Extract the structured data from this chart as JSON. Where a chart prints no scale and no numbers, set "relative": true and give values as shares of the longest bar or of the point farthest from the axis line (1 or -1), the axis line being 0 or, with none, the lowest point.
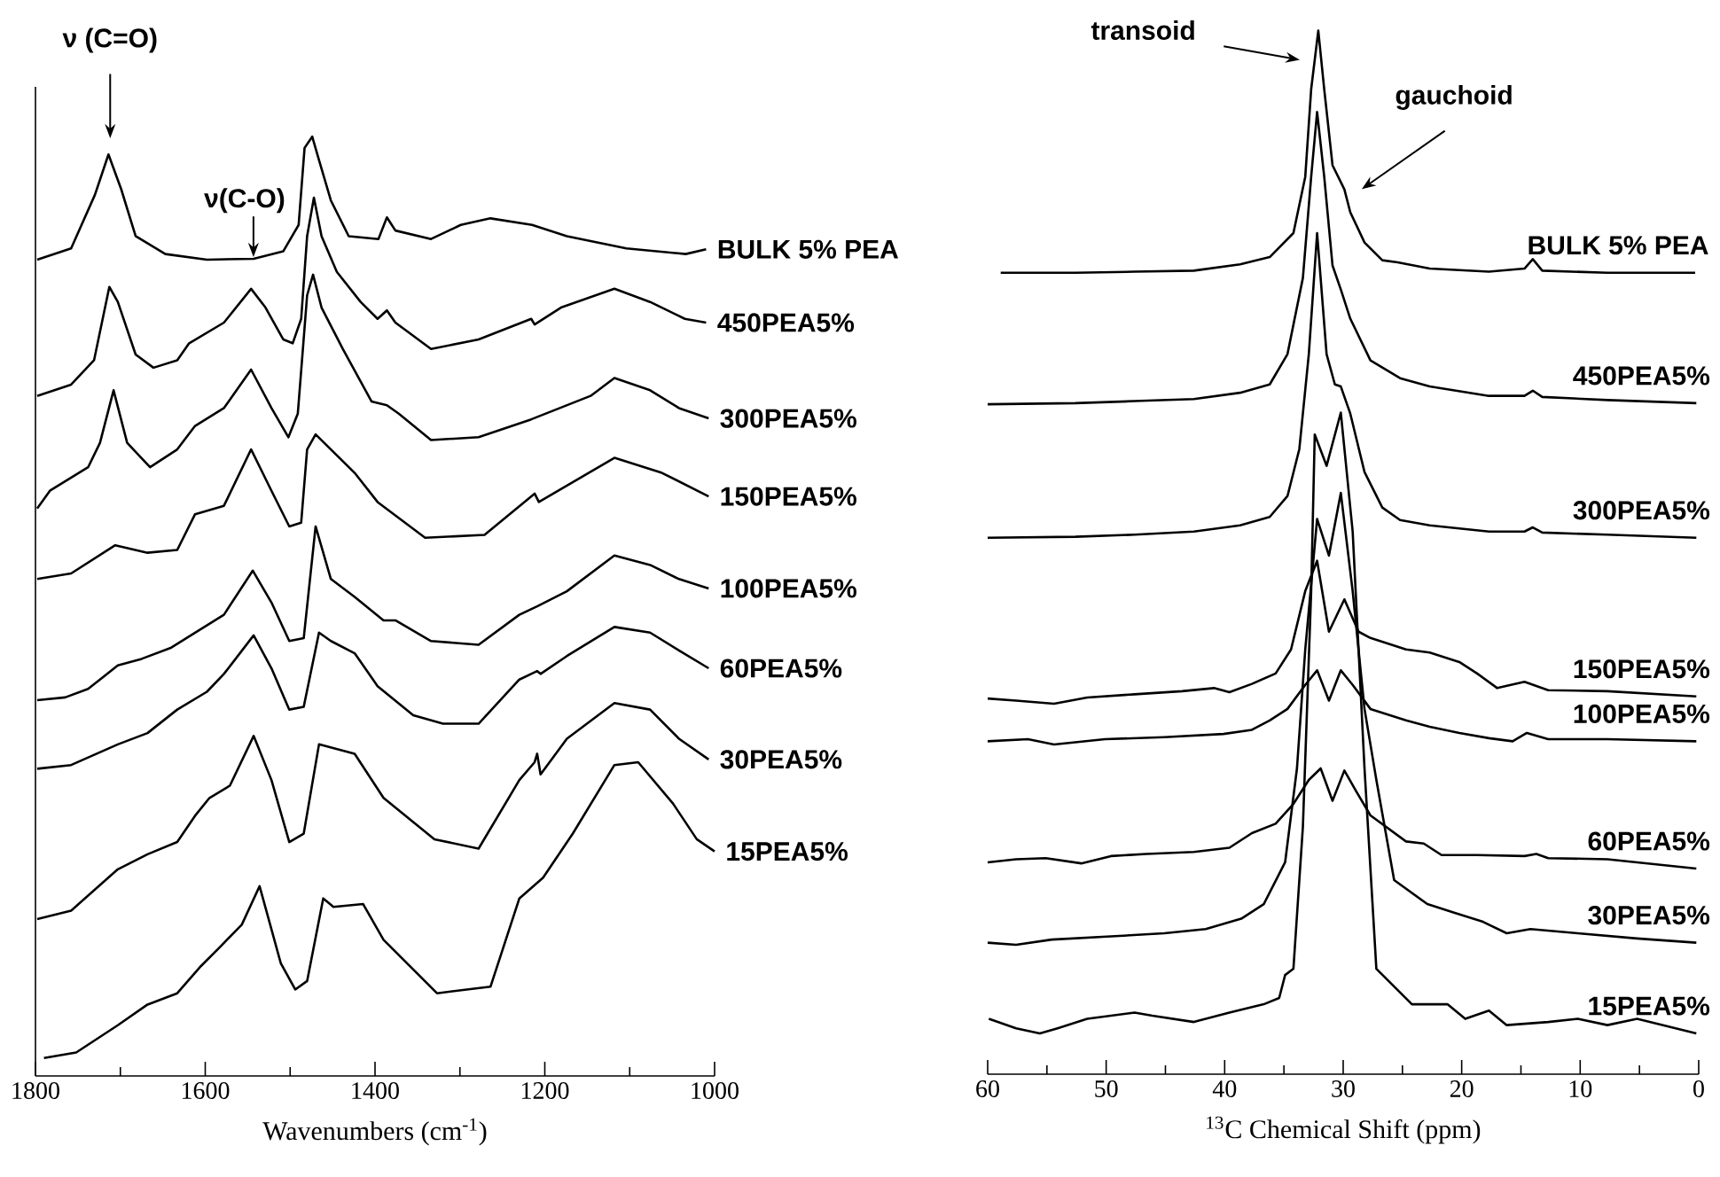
{
  "chart_data": [
    {
      "type": "line",
      "relative": true,
      "xlabel": "Wavenumbers (cm$^{-1}$)",
      "xlim": [
        1800,
        1000
      ],
      "xticks": [
        1800,
        1600,
        1400,
        1200,
        1000
      ],
      "tick_labels": "x",
      "annotations": [
        "ν (C=O)",
        "ν(C-O)"
      ],
      "series": [
        {
          "name": "BULK 5% PEA",
          "color": "#000000",
          "x": [
            1798,
            1758,
            1730,
            1714,
            1699,
            1682,
            1647,
            1598,
            1543,
            1508,
            1490,
            1483,
            1474,
            1466,
            1452,
            1431,
            1396,
            1386,
            1376,
            1334,
            1299,
            1264,
            1215,
            1174,
            1104,
            1034,
            1010
          ],
          "values": [
            0.869,
            0.881,
            0.938,
            0.981,
            0.944,
            0.894,
            0.875,
            0.869,
            0.87,
            0.878,
            0.906,
            0.988,
            1.0,
            0.975,
            0.932,
            0.894,
            0.891,
            0.914,
            0.9,
            0.891,
            0.906,
            0.913,
            0.906,
            0.894,
            0.881,
            0.875,
            0.88
          ]
        },
        {
          "name": "450PEA5%",
          "color": "#000000",
          "x": [
            1798,
            1758,
            1731,
            1713,
            1703,
            1682,
            1661,
            1633,
            1619,
            1578,
            1546,
            1529,
            1508,
            1497,
            1487,
            1480,
            1472,
            1463,
            1445,
            1417,
            1397,
            1386,
            1376,
            1334,
            1278,
            1216,
            1212,
            1181,
            1118,
            1076,
            1035,
            1010
          ],
          "values": [
            0.724,
            0.736,
            0.762,
            0.84,
            0.824,
            0.768,
            0.754,
            0.762,
            0.78,
            0.802,
            0.838,
            0.818,
            0.784,
            0.78,
            0.806,
            0.894,
            0.935,
            0.894,
            0.856,
            0.824,
            0.806,
            0.815,
            0.802,
            0.774,
            0.784,
            0.806,
            0.8,
            0.818,
            0.838,
            0.824,
            0.806,
            0.802
          ]
        },
        {
          "name": "300PEA5%",
          "color": "#000000",
          "x": [
            1798,
            1783,
            1738,
            1724,
            1708,
            1692,
            1665,
            1633,
            1612,
            1578,
            1546,
            1522,
            1502,
            1491,
            1480,
            1473,
            1463,
            1438,
            1404,
            1386,
            1372,
            1334,
            1278,
            1216,
            1146,
            1118,
            1076,
            1042,
            1007
          ],
          "values": [
            0.604,
            0.623,
            0.648,
            0.674,
            0.73,
            0.674,
            0.648,
            0.667,
            0.692,
            0.711,
            0.752,
            0.711,
            0.68,
            0.705,
            0.831,
            0.853,
            0.818,
            0.774,
            0.718,
            0.714,
            0.705,
            0.677,
            0.68,
            0.699,
            0.724,
            0.743,
            0.73,
            0.711,
            0.7
          ]
        },
        {
          "name": "150PEA5%",
          "color": "#000000",
          "x": [
            1798,
            1758,
            1706,
            1668,
            1633,
            1612,
            1578,
            1546,
            1522,
            1501,
            1487,
            1480,
            1470,
            1424,
            1397,
            1341,
            1271,
            1212,
            1207,
            1118,
            1062,
            1007
          ],
          "values": [
            0.529,
            0.535,
            0.565,
            0.557,
            0.56,
            0.598,
            0.607,
            0.667,
            0.623,
            0.585,
            0.589,
            0.667,
            0.683,
            0.642,
            0.611,
            0.573,
            0.576,
            0.62,
            0.611,
            0.658,
            0.642,
            0.617
          ]
        },
        {
          "name": "100PEA5%",
          "color": "#000000",
          "x": [
            1798,
            1765,
            1738,
            1703,
            1675,
            1640,
            1578,
            1544,
            1522,
            1501,
            1484,
            1470,
            1452,
            1424,
            1390,
            1376,
            1334,
            1278,
            1230,
            1209,
            1174,
            1118,
            1076,
            1042,
            1007
          ],
          "values": [
            0.4,
            0.403,
            0.412,
            0.437,
            0.444,
            0.456,
            0.491,
            0.538,
            0.504,
            0.463,
            0.466,
            0.585,
            0.529,
            0.51,
            0.485,
            0.485,
            0.463,
            0.459,
            0.491,
            0.5,
            0.516,
            0.554,
            0.544,
            0.529,
            0.519
          ]
        },
        {
          "name": "60PEA5%",
          "color": "#000000",
          "x": [
            1798,
            1758,
            1703,
            1668,
            1633,
            1598,
            1578,
            1543,
            1522,
            1501,
            1484,
            1466,
            1452,
            1424,
            1397,
            1355,
            1320,
            1278,
            1230,
            1209,
            1205,
            1174,
            1118,
            1076,
            1042,
            1007
          ],
          "values": [
            0.327,
            0.331,
            0.353,
            0.365,
            0.39,
            0.409,
            0.428,
            0.469,
            0.434,
            0.39,
            0.393,
            0.472,
            0.463,
            0.45,
            0.415,
            0.384,
            0.375,
            0.375,
            0.422,
            0.431,
            0.428,
            0.447,
            0.478,
            0.472,
            0.453,
            0.434
          ]
        },
        {
          "name": "30PEA5%",
          "color": "#000000",
          "x": [
            1798,
            1758,
            1703,
            1668,
            1633,
            1612,
            1595,
            1571,
            1543,
            1522,
            1501,
            1484,
            1466,
            1424,
            1390,
            1330,
            1278,
            1230,
            1212,
            1209,
            1205,
            1174,
            1118,
            1076,
            1042,
            1007
          ],
          "values": [
            0.167,
            0.176,
            0.22,
            0.236,
            0.249,
            0.277,
            0.296,
            0.309,
            0.362,
            0.315,
            0.249,
            0.258,
            0.353,
            0.343,
            0.296,
            0.252,
            0.242,
            0.315,
            0.334,
            0.343,
            0.321,
            0.359,
            0.397,
            0.39,
            0.359,
            0.337
          ]
        },
        {
          "name": "15PEA5%",
          "color": "#000000",
          "x": [
            1790,
            1752,
            1703,
            1668,
            1633,
            1605,
            1584,
            1557,
            1536,
            1511,
            1494,
            1480,
            1461,
            1449,
            1414,
            1390,
            1327,
            1292,
            1264,
            1230,
            1202,
            1167,
            1118,
            1090,
            1049,
            1021,
            1000
          ],
          "values": [
            0.019,
            0.025,
            0.054,
            0.076,
            0.088,
            0.117,
            0.136,
            0.161,
            0.202,
            0.12,
            0.092,
            0.101,
            0.189,
            0.18,
            0.183,
            0.145,
            0.088,
            0.092,
            0.095,
            0.189,
            0.211,
            0.258,
            0.331,
            0.334,
            0.29,
            0.252,
            0.239
          ]
        }
      ]
    },
    {
      "type": "line",
      "relative": true,
      "xlabel": "$^{13}$C Chemical Shift (ppm)",
      "xlim": [
        60,
        0
      ],
      "xticks": [
        60,
        50,
        40,
        30,
        20,
        10,
        0
      ],
      "annotations": [
        "transoid",
        "gauchoid"
      ],
      "series": [
        {
          "name": "BULK 5% PEA",
          "color": "#000000",
          "x": [
            58.9,
            52.6,
            47.6,
            42.6,
            38.7,
            36.2,
            34.2,
            33.2,
            32.7,
            32.1,
            31.6,
            30.9,
            29.9,
            29.4,
            28.2,
            26.7,
            25.4,
            22.7,
            17.7,
            14.7,
            14.0,
            13.2,
            7.7,
            0.3
          ],
          "values": [
            0.768,
            0.768,
            0.769,
            0.77,
            0.776,
            0.783,
            0.806,
            0.86,
            0.944,
            1.0,
            0.944,
            0.871,
            0.848,
            0.826,
            0.797,
            0.78,
            0.778,
            0.772,
            0.769,
            0.772,
            0.781,
            0.77,
            0.768,
            0.768
          ]
        },
        {
          "name": "450PEA5%",
          "color": "#000000",
          "x": [
            60.0,
            52.6,
            47.6,
            42.6,
            38.7,
            36.2,
            34.7,
            33.4,
            32.7,
            32.2,
            31.6,
            30.9,
            30.2,
            29.4,
            27.7,
            25.2,
            22.7,
            17.7,
            14.7,
            14.0,
            13.2,
            7.7,
            0.2
          ],
          "values": [
            0.642,
            0.643,
            0.645,
            0.647,
            0.653,
            0.661,
            0.69,
            0.763,
            0.86,
            0.922,
            0.86,
            0.775,
            0.752,
            0.724,
            0.684,
            0.667,
            0.659,
            0.65,
            0.65,
            0.655,
            0.649,
            0.646,
            0.643
          ]
        },
        {
          "name": "300PEA5%",
          "color": "#000000",
          "x": [
            60.0,
            52.6,
            47.6,
            42.6,
            38.7,
            36.2,
            34.7,
            33.7,
            32.9,
            32.2,
            31.4,
            30.7,
            30.2,
            29.4,
            28.2,
            26.7,
            25.2,
            22.7,
            17.7,
            14.7,
            14.0,
            13.2,
            7.7,
            0.2
          ],
          "values": [
            0.514,
            0.515,
            0.517,
            0.52,
            0.526,
            0.534,
            0.554,
            0.599,
            0.69,
            0.806,
            0.69,
            0.661,
            0.659,
            0.633,
            0.577,
            0.543,
            0.531,
            0.526,
            0.52,
            0.52,
            0.524,
            0.519,
            0.517,
            0.514
          ]
        },
        {
          "name": "150PEA5%",
          "color": "#000000",
          "x": [
            60.0,
            57.6,
            54.4,
            51.6,
            47.6,
            43.6,
            40.9,
            39.6,
            37.7,
            35.7,
            34.4,
            33.2,
            32.2,
            31.2,
            29.9,
            28.7,
            27.7,
            24.7,
            22.7,
            20.2,
            18.7,
            17.0,
            14.7,
            12.7,
            7.7,
            0.2
          ],
          "values": [
            0.36,
            0.358,
            0.355,
            0.361,
            0.364,
            0.367,
            0.37,
            0.366,
            0.374,
            0.384,
            0.407,
            0.463,
            0.492,
            0.424,
            0.455,
            0.424,
            0.418,
            0.407,
            0.404,
            0.395,
            0.384,
            0.37,
            0.376,
            0.368,
            0.367,
            0.362
          ]
        },
        {
          "name": "100PEA5%",
          "color": "#000000",
          "x": [
            60.0,
            56.6,
            54.4,
            50.1,
            45.1,
            40.1,
            37.7,
            36.2,
            34.7,
            33.2,
            32.2,
            31.2,
            30.2,
            29.2,
            27.7,
            24.7,
            22.7,
            20.2,
            17.7,
            15.7,
            14.5,
            12.7,
            7.7,
            0.2
          ],
          "values": [
            0.319,
            0.321,
            0.316,
            0.321,
            0.323,
            0.326,
            0.33,
            0.339,
            0.35,
            0.373,
            0.387,
            0.358,
            0.387,
            0.373,
            0.35,
            0.339,
            0.333,
            0.327,
            0.322,
            0.319,
            0.327,
            0.321,
            0.321,
            0.319
          ]
        },
        {
          "name": "60PEA5%",
          "color": "#000000",
          "x": [
            60.0,
            57.6,
            55.1,
            52.1,
            49.6,
            46.6,
            42.6,
            39.6,
            37.7,
            35.7,
            34.2,
            32.9,
            31.9,
            30.9,
            29.9,
            28.9,
            27.7,
            24.7,
            23.2,
            21.7,
            18.7,
            14.7,
            13.7,
            12.7,
            7.7,
            0.2
          ],
          "values": [
            0.203,
            0.206,
            0.207,
            0.202,
            0.209,
            0.211,
            0.213,
            0.217,
            0.231,
            0.24,
            0.259,
            0.282,
            0.293,
            0.262,
            0.291,
            0.271,
            0.248,
            0.223,
            0.221,
            0.21,
            0.21,
            0.209,
            0.211,
            0.207,
            0.206,
            0.197
          ]
        },
        {
          "name": "30PEA5%",
          "color": "#000000",
          "x": [
            60.0,
            57.6,
            54.6,
            49.6,
            45.1,
            41.6,
            38.6,
            36.7,
            34.9,
            33.9,
            33.2,
            32.2,
            31.2,
            30.2,
            29.2,
            28.2,
            27.2,
            25.7,
            22.9,
            20.7,
            18.2,
            16.2,
            14.2,
            10.2,
            5.2,
            0.2
          ],
          "values": [
            0.126,
            0.124,
            0.129,
            0.132,
            0.135,
            0.139,
            0.149,
            0.163,
            0.203,
            0.293,
            0.407,
            0.532,
            0.497,
            0.557,
            0.463,
            0.35,
            0.282,
            0.186,
            0.163,
            0.155,
            0.146,
            0.135,
            0.139,
            0.135,
            0.13,
            0.126
          ]
        },
        {
          "name": "15PEA5%",
          "color": "#000000",
          "x": [
            59.9,
            57.6,
            55.6,
            54.1,
            51.6,
            47.6,
            46.1,
            42.6,
            39.6,
            36.7,
            35.4,
            34.9,
            34.2,
            33.4,
            32.7,
            32.4,
            31.4,
            30.2,
            29.2,
            28.2,
            27.2,
            25.7,
            24.2,
            22.7,
            21.2,
            19.7,
            17.7,
            16.2,
            12.7,
            10.2,
            7.7,
            5.2,
            0.2
          ],
          "values": [
            0.053,
            0.044,
            0.039,
            0.044,
            0.053,
            0.059,
            0.056,
            0.05,
            0.059,
            0.067,
            0.073,
            0.095,
            0.101,
            0.237,
            0.463,
            0.613,
            0.583,
            0.634,
            0.52,
            0.293,
            0.101,
            0.084,
            0.067,
            0.067,
            0.067,
            0.053,
            0.061,
            0.047,
            0.05,
            0.053,
            0.047,
            0.053,
            0.039
          ]
        }
      ]
    }
  ]
}
